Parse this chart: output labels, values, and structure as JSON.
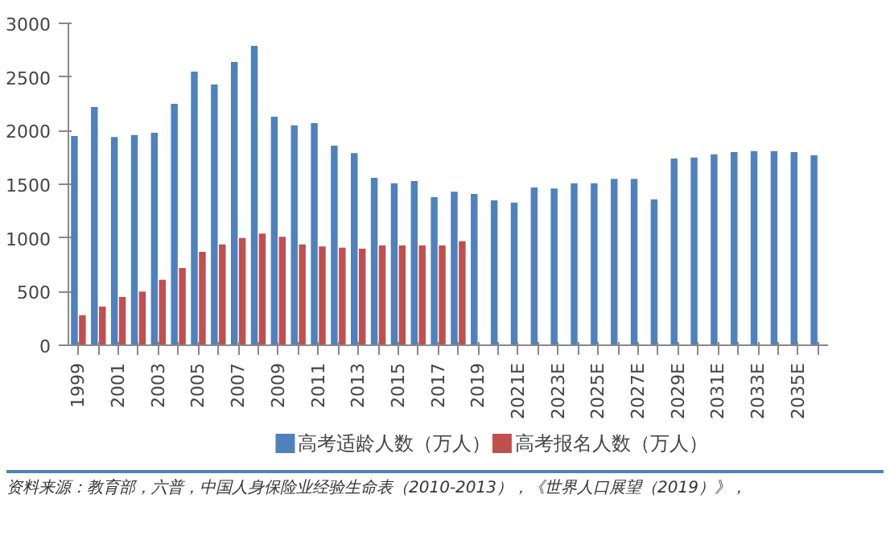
{
  "chart_data": {
    "type": "bar",
    "categories": [
      "1999",
      null,
      "2001",
      null,
      "2003",
      null,
      "2005",
      null,
      "2007",
      null,
      "2009",
      null,
      "2011",
      null,
      "2013",
      null,
      "2015",
      null,
      "2017",
      null,
      "2019",
      null,
      "2021E",
      null,
      "2023E",
      null,
      "2025E",
      null,
      "2027E",
      null,
      "2029E",
      null,
      "2031E",
      null,
      "2033E",
      null,
      "2035E",
      null
    ],
    "series": [
      {
        "name": "高考适龄人数（万人）",
        "color": "#4f81bd",
        "values": [
          1950,
          2220,
          1940,
          1960,
          1980,
          2250,
          2550,
          2430,
          2640,
          2790,
          2130,
          2050,
          2070,
          1860,
          1790,
          1560,
          1510,
          1530,
          1380,
          1430,
          1410,
          1350,
          1330,
          1470,
          1460,
          1510,
          1510,
          1550,
          1550,
          1360,
          1740,
          1750,
          1780,
          1800,
          1810,
          1810,
          1800,
          1770
        ]
      },
      {
        "name": "高考报名人数（万人）",
        "color": "#c0504d",
        "values": [
          280,
          360,
          450,
          500,
          610,
          720,
          870,
          940,
          1000,
          1040,
          1010,
          940,
          920,
          910,
          900,
          930,
          930,
          930,
          930,
          970,
          null,
          null,
          null,
          null,
          null,
          null,
          null,
          null,
          null,
          null,
          null,
          null,
          null,
          null,
          null,
          null,
          null,
          null
        ]
      }
    ],
    "ylim": [
      0,
      3000
    ],
    "yticks": [
      0,
      500,
      1000,
      1500,
      2000,
      2500,
      3000
    ],
    "grid": false,
    "legend": "bottom",
    "annotations": [
      "资料来源：教育部，六普，中国人身保险业经验生命表（2010-2013），《世界人口展望（2019）》，"
    ]
  }
}
